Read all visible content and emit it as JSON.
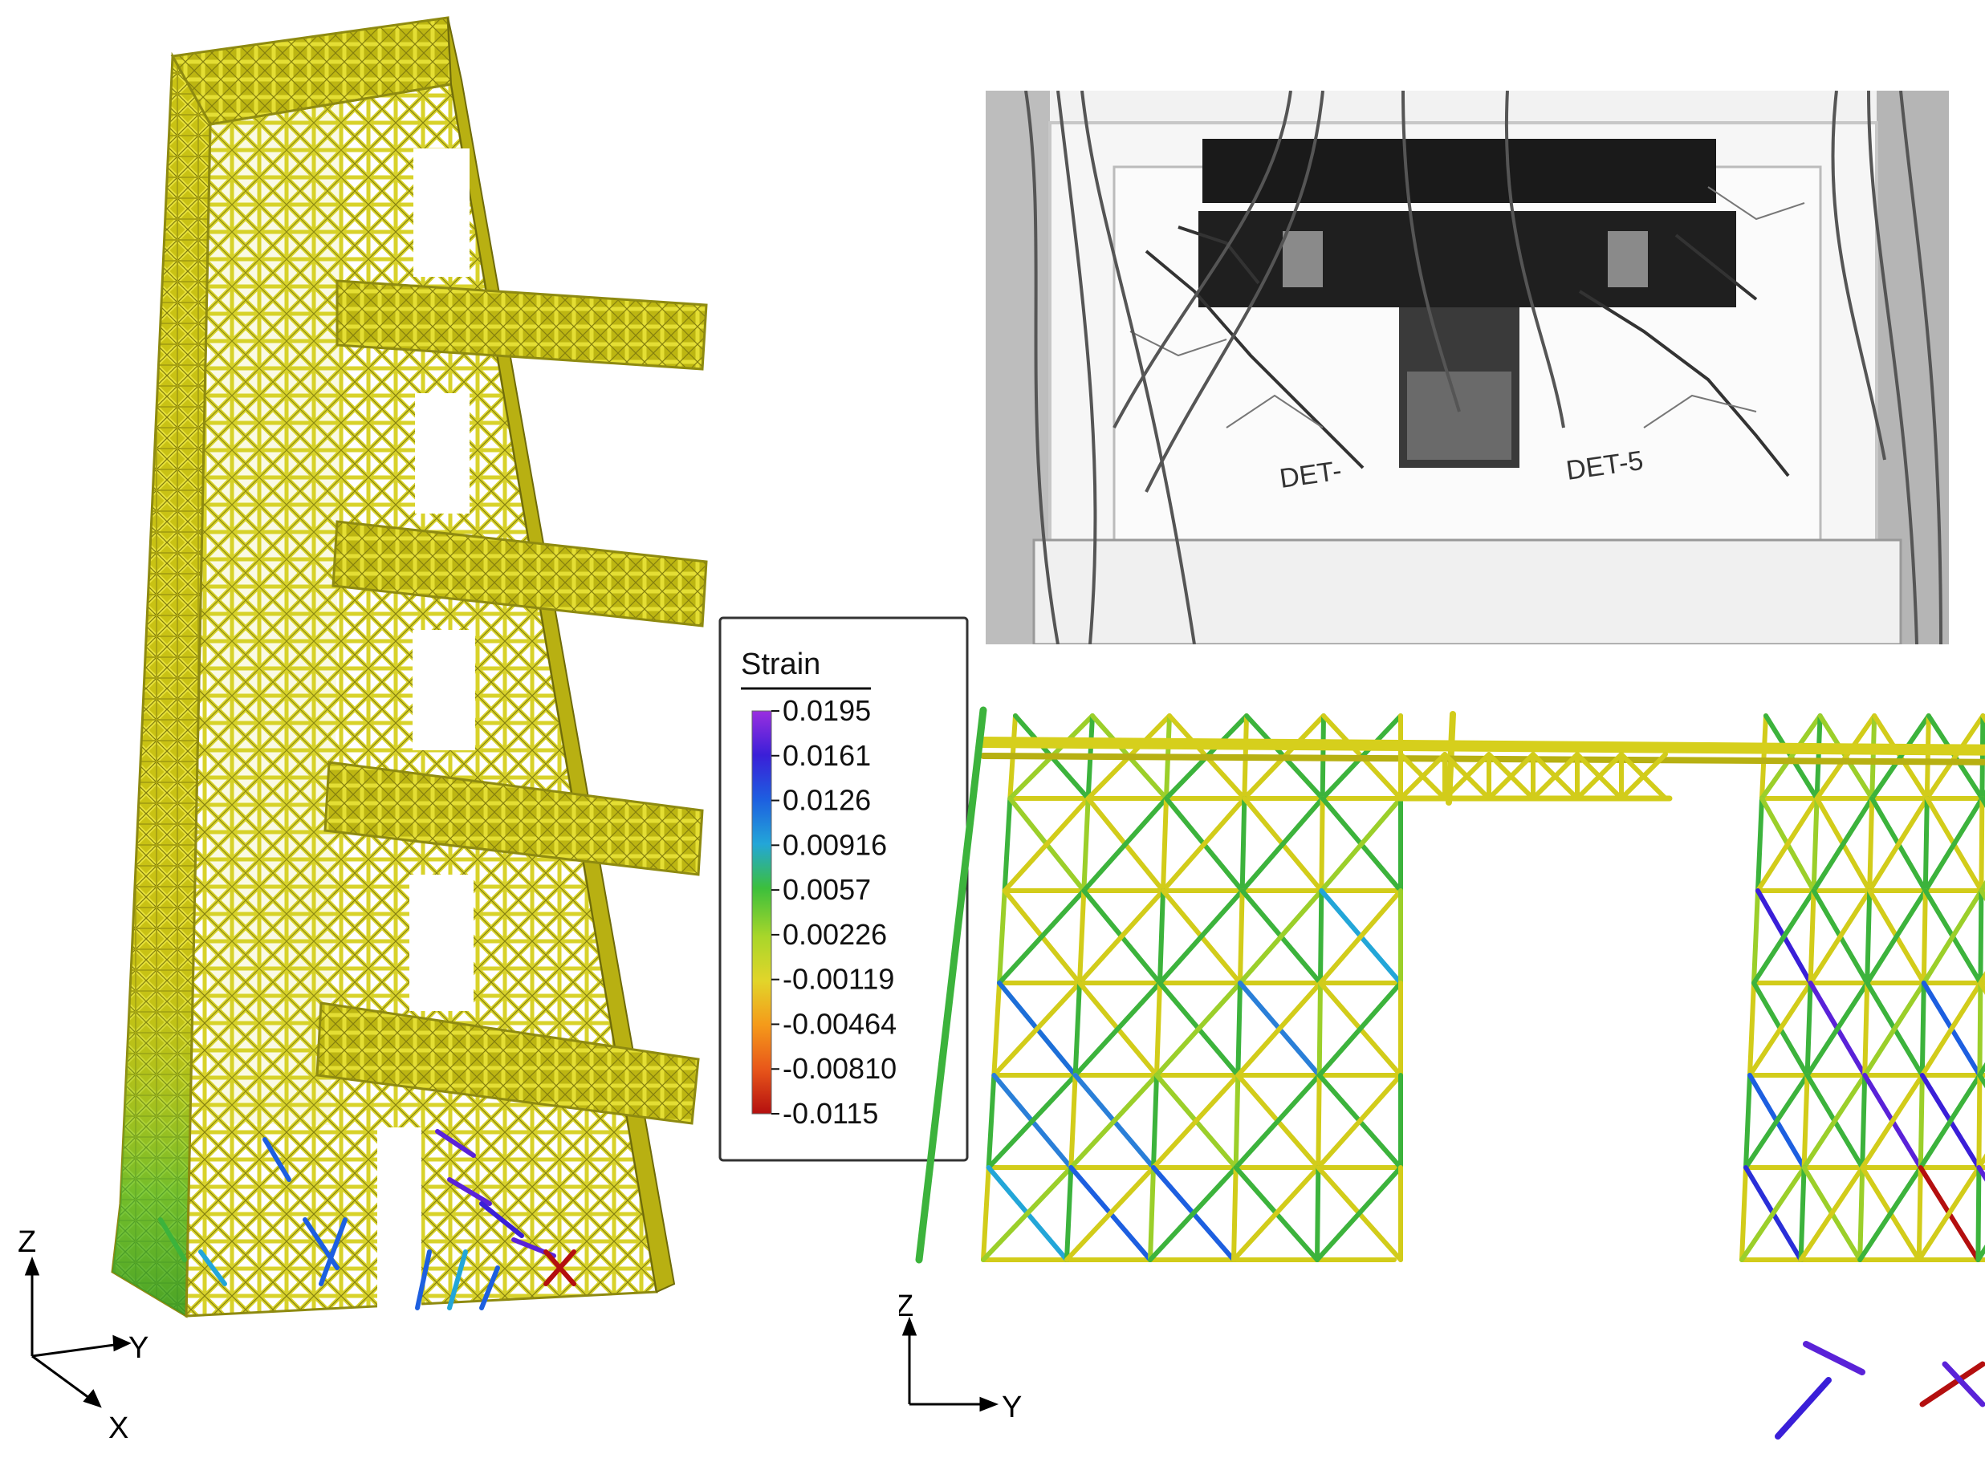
{
  "legend": {
    "title": "Strain",
    "ticks": [
      "0.0195",
      "0.0161",
      "0.0126",
      "0.00916",
      "0.0057",
      "0.00226",
      "-0.00119",
      "-0.00464",
      "-0.00810",
      "-0.0115"
    ],
    "colors": [
      "#9a2fe0",
      "#3a1fd8",
      "#1d5fe0",
      "#23a6d8",
      "#3cbf3c",
      "#a8d62a",
      "#e2d52a",
      "#f59a1a",
      "#e8561a",
      "#b40f0f"
    ]
  },
  "axes_3d": {
    "z": "Z",
    "y": "Y",
    "x": "X"
  },
  "axes_2d": {
    "z": "Z",
    "y": "Y"
  },
  "photo": {
    "labels": [
      "DET-",
      "DET-5"
    ]
  },
  "colors": {
    "strut_default": "#d2cc1a",
    "strut_dark": "#8e8a10",
    "green": "#3cb33c",
    "blue": "#1d5fe0",
    "violet": "#5a22d8",
    "red": "#b40f0f"
  }
}
